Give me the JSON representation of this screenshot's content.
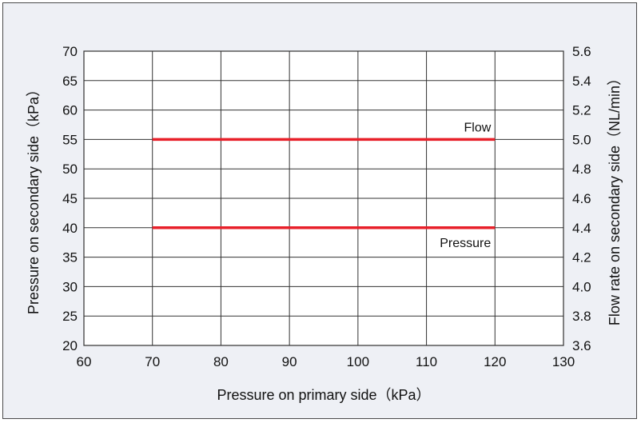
{
  "chart_data": {
    "type": "line",
    "title": "",
    "xlabel": "Pressure on primary side（kPa）",
    "ylabel": "Pressure on secondary side（kPa）",
    "y2label": "Flow rate on secondary side（NL/min）",
    "xlim": [
      60,
      130
    ],
    "ylim": [
      20,
      70
    ],
    "y2lim": [
      3.6,
      5.6
    ],
    "xticks": [
      "60",
      "70",
      "80",
      "90",
      "100",
      "110",
      "120",
      "130"
    ],
    "yticks": [
      "20",
      "25",
      "30",
      "35",
      "40",
      "45",
      "50",
      "55",
      "60",
      "65",
      "70"
    ],
    "y2ticks": [
      "3.6",
      "3.8",
      "4.0",
      "4.2",
      "4.4",
      "4.6",
      "4.8",
      "5.0",
      "5.2",
      "5.4",
      "5.6"
    ],
    "grid": true,
    "series": [
      {
        "name": "Flow",
        "axis": "right",
        "color": "#e8202a",
        "x": [
          70,
          80,
          90,
          100,
          110,
          120
        ],
        "y": [
          5.0,
          5.0,
          5.0,
          5.0,
          5.0,
          5.0
        ]
      },
      {
        "name": "Pressure",
        "axis": "left",
        "color": "#e8202a",
        "x": [
          70,
          80,
          90,
          100,
          110,
          120
        ],
        "y": [
          40,
          40,
          40,
          40,
          40,
          40
        ]
      }
    ]
  }
}
